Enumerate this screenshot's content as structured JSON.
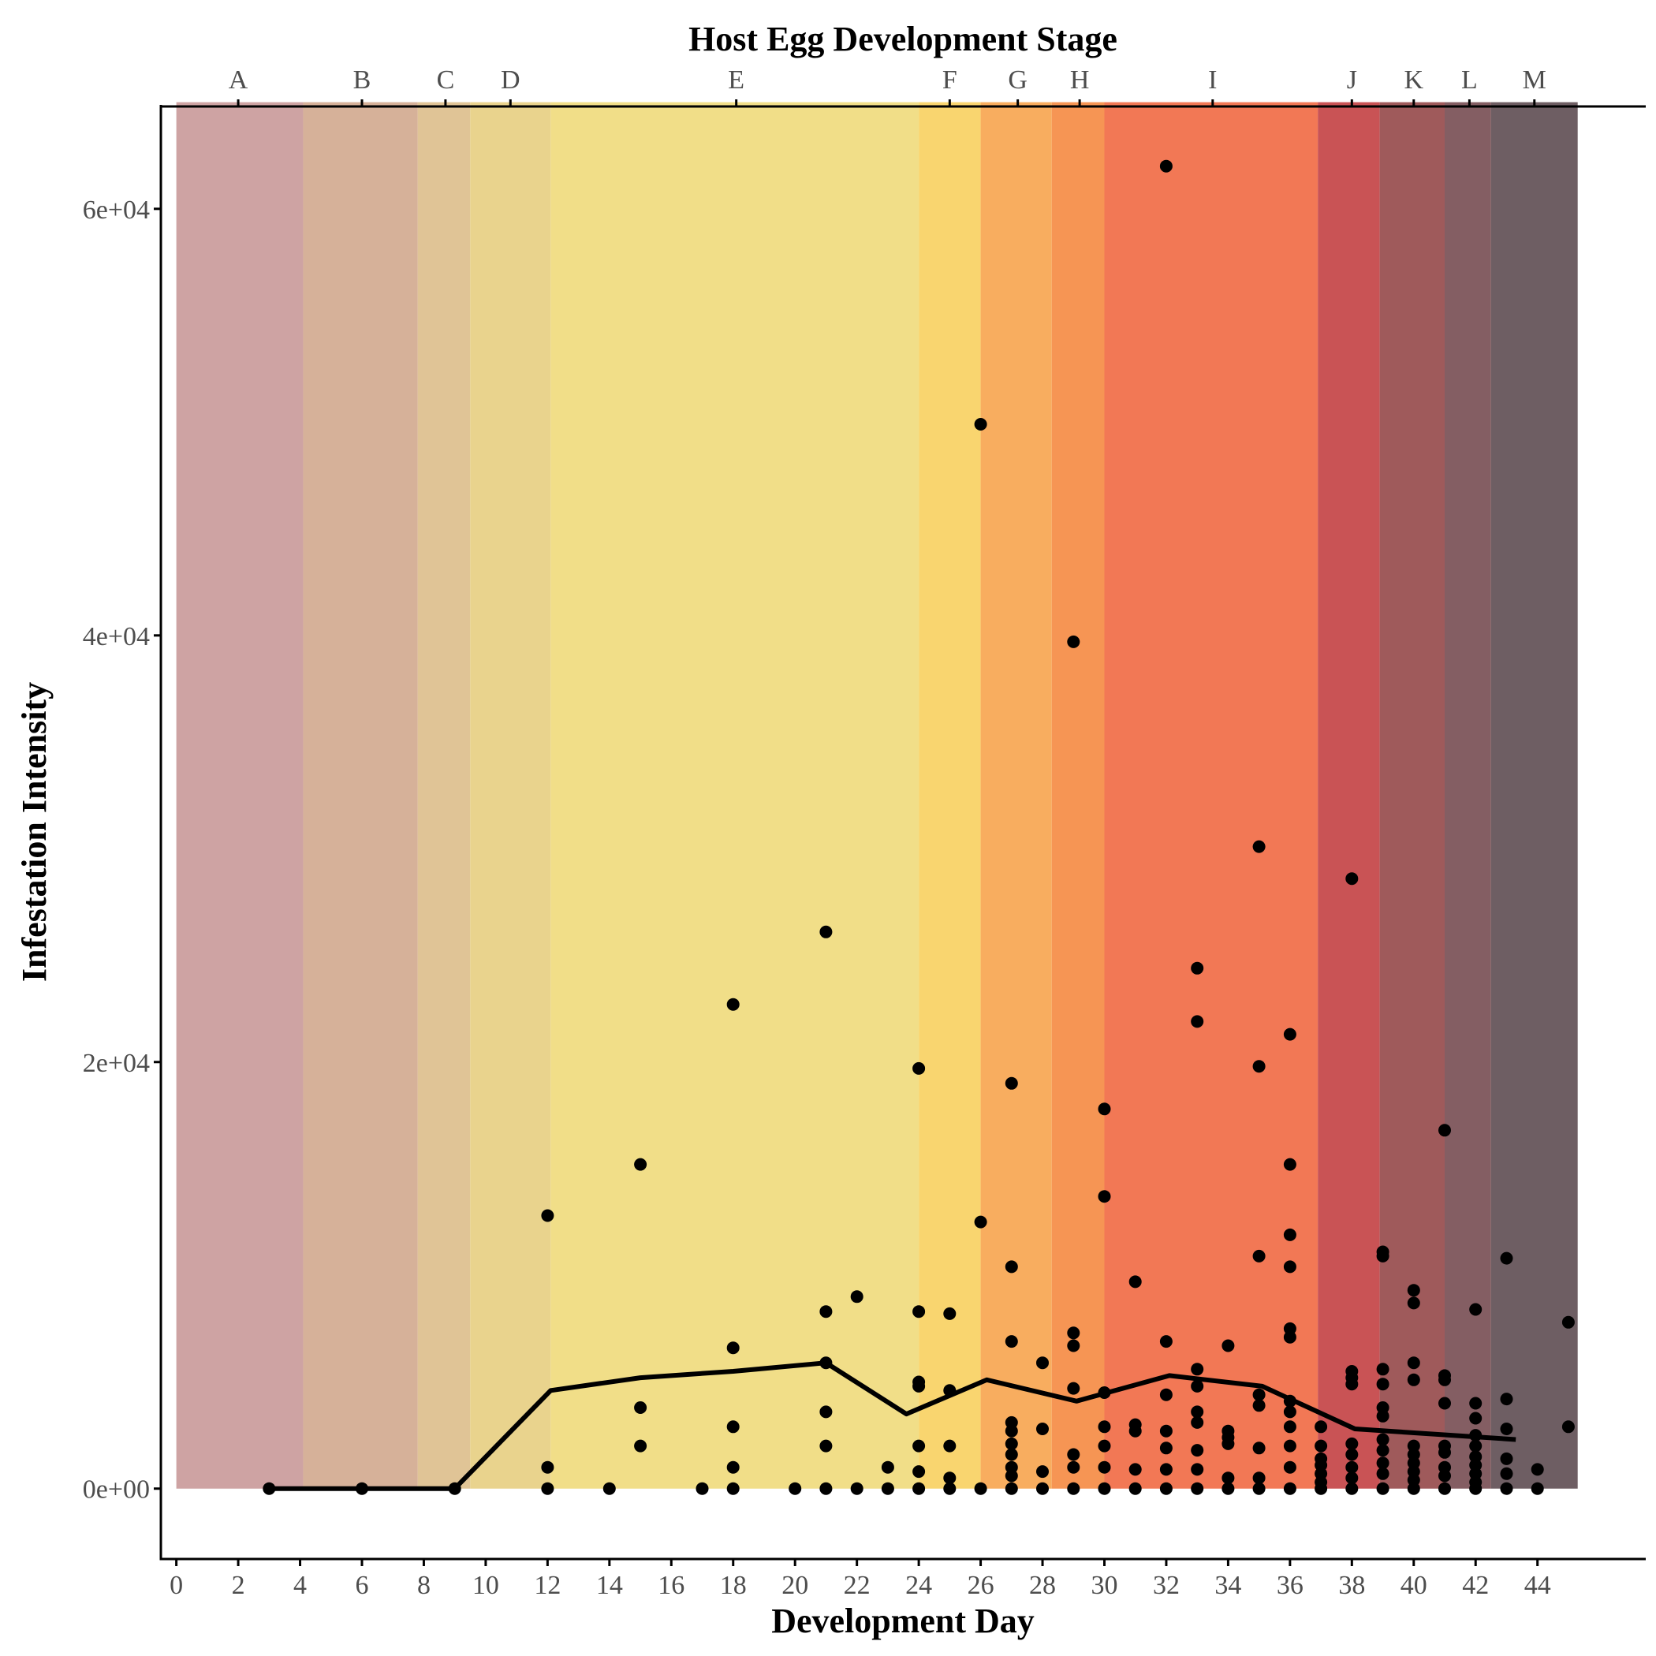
{
  "chart_data": {
    "type": "scatter",
    "title": "",
    "xlabel": "Development Day",
    "ylabel": "Infestation Intensity",
    "top_axis_title": "Host Egg Development Stage",
    "xlim": [
      -0.5,
      47.5
    ],
    "ylim": [
      -3300,
      64800
    ],
    "grid": false,
    "x_ticks": [
      0,
      2,
      4,
      6,
      8,
      10,
      12,
      14,
      16,
      18,
      20,
      22,
      24,
      26,
      28,
      30,
      32,
      34,
      36,
      38,
      40,
      42,
      44
    ],
    "y_ticks": [
      {
        "value": 0,
        "label": "0e+00"
      },
      {
        "value": 20000,
        "label": "2e+04"
      },
      {
        "value": 40000,
        "label": "4e+04"
      },
      {
        "value": 60000,
        "label": "6e+04"
      }
    ],
    "stage_ticks": [
      {
        "label": "A",
        "x": 2
      },
      {
        "label": "B",
        "x": 6
      },
      {
        "label": "C",
        "x": 8.7
      },
      {
        "label": "D",
        "x": 10.8
      },
      {
        "label": "E",
        "x": 18.1
      },
      {
        "label": "F",
        "x": 25
      },
      {
        "label": "G",
        "x": 27.2
      },
      {
        "label": "H",
        "x": 29.2
      },
      {
        "label": "I",
        "x": 33.5
      },
      {
        "label": "J",
        "x": 38
      },
      {
        "label": "K",
        "x": 40
      },
      {
        "label": "L",
        "x": 41.8
      },
      {
        "label": "M",
        "x": 43.9
      }
    ],
    "stage_bands": [
      {
        "stage": "A",
        "x0": 0,
        "x1": 4.1,
        "color": "#cea3a3"
      },
      {
        "stage": "B",
        "x0": 4.1,
        "x1": 7.8,
        "color": "#d6b199"
      },
      {
        "stage": "C",
        "x0": 7.8,
        "x1": 9.5,
        "color": "#e0c496"
      },
      {
        "stage": "D",
        "x0": 9.5,
        "x1": 12.1,
        "color": "#e9d38d"
      },
      {
        "stage": "E",
        "x0": 12.1,
        "x1": 24,
        "color": "#f1de88"
      },
      {
        "stage": "F",
        "x0": 24,
        "x1": 26,
        "color": "#f9d56f"
      },
      {
        "stage": "G",
        "x0": 26,
        "x1": 28.3,
        "color": "#f8ad5f"
      },
      {
        "stage": "H",
        "x0": 28.3,
        "x1": 30,
        "color": "#f69554"
      },
      {
        "stage": "I",
        "x0": 30,
        "x1": 36.9,
        "color": "#f27855"
      },
      {
        "stage": "J",
        "x0": 36.9,
        "x1": 38.9,
        "color": "#c95355"
      },
      {
        "stage": "K",
        "x0": 38.9,
        "x1": 41,
        "color": "#9f5a5b"
      },
      {
        "stage": "L",
        "x0": 41,
        "x1": 42.5,
        "color": "#845e63"
      },
      {
        "stage": "M",
        "x0": 42.5,
        "x1": 45.3,
        "color": "#6e5e63"
      }
    ],
    "band_top": 65000,
    "series": [
      {
        "type": "scatter",
        "color": "#000000",
        "points": [
          [
            3,
            0
          ],
          [
            6,
            0
          ],
          [
            9,
            0
          ],
          [
            12,
            0
          ],
          [
            12,
            1000
          ],
          [
            12,
            12800
          ],
          [
            14,
            0
          ],
          [
            15,
            2000
          ],
          [
            15,
            3800
          ],
          [
            15,
            15200
          ],
          [
            17,
            0
          ],
          [
            18,
            0
          ],
          [
            18,
            1000
          ],
          [
            18,
            2900
          ],
          [
            18,
            6600
          ],
          [
            18,
            22700
          ],
          [
            20,
            0
          ],
          [
            21,
            0
          ],
          [
            21,
            2000
          ],
          [
            21,
            3600
          ],
          [
            21,
            5900
          ],
          [
            21,
            8300
          ],
          [
            21,
            26100
          ],
          [
            22,
            0
          ],
          [
            22,
            9000
          ],
          [
            23,
            0
          ],
          [
            23,
            1000
          ],
          [
            24,
            0
          ],
          [
            24,
            800
          ],
          [
            24,
            2000
          ],
          [
            24,
            4800
          ],
          [
            24,
            5000
          ],
          [
            24,
            8300
          ],
          [
            24,
            19700
          ],
          [
            25,
            0
          ],
          [
            25,
            500
          ],
          [
            25,
            2000
          ],
          [
            25,
            4600
          ],
          [
            25,
            8200
          ],
          [
            26,
            0
          ],
          [
            26,
            12500
          ],
          [
            26,
            49900
          ],
          [
            27,
            0
          ],
          [
            27,
            600
          ],
          [
            27,
            1000
          ],
          [
            27,
            1600
          ],
          [
            27,
            2100
          ],
          [
            27,
            2700
          ],
          [
            27,
            3100
          ],
          [
            27,
            6900
          ],
          [
            27,
            10400
          ],
          [
            27,
            19000
          ],
          [
            28,
            0
          ],
          [
            28,
            800
          ],
          [
            28,
            2800
          ],
          [
            28,
            5900
          ],
          [
            29,
            0
          ],
          [
            29,
            1000
          ],
          [
            29,
            1600
          ],
          [
            29,
            4700
          ],
          [
            29,
            6700
          ],
          [
            29,
            7300
          ],
          [
            29,
            39700
          ],
          [
            30,
            0
          ],
          [
            30,
            1000
          ],
          [
            30,
            2000
          ],
          [
            30,
            2900
          ],
          [
            30,
            4500
          ],
          [
            30,
            13700
          ],
          [
            30,
            17800
          ],
          [
            31,
            0
          ],
          [
            31,
            900
          ],
          [
            31,
            2700
          ],
          [
            31,
            3000
          ],
          [
            31,
            9700
          ],
          [
            32,
            0
          ],
          [
            32,
            900
          ],
          [
            32,
            1900
          ],
          [
            32,
            2700
          ],
          [
            32,
            4400
          ],
          [
            32,
            6900
          ],
          [
            32,
            62000
          ],
          [
            33,
            0
          ],
          [
            33,
            900
          ],
          [
            33,
            1800
          ],
          [
            33,
            3100
          ],
          [
            33,
            3600
          ],
          [
            33,
            4800
          ],
          [
            33,
            5600
          ],
          [
            33,
            21900
          ],
          [
            33,
            24400
          ],
          [
            34,
            0
          ],
          [
            34,
            500
          ],
          [
            34,
            2100
          ],
          [
            34,
            2400
          ],
          [
            34,
            2700
          ],
          [
            34,
            6700
          ],
          [
            35,
            0
          ],
          [
            35,
            500
          ],
          [
            35,
            1900
          ],
          [
            35,
            3900
          ],
          [
            35,
            4400
          ],
          [
            35,
            10900
          ],
          [
            35,
            19800
          ],
          [
            35,
            30100
          ],
          [
            36,
            0
          ],
          [
            36,
            1000
          ],
          [
            36,
            2000
          ],
          [
            36,
            2900
          ],
          [
            36,
            3600
          ],
          [
            36,
            4100
          ],
          [
            36,
            7100
          ],
          [
            36,
            7500
          ],
          [
            36,
            10400
          ],
          [
            36,
            11900
          ],
          [
            36,
            15200
          ],
          [
            36,
            21300
          ],
          [
            37,
            0
          ],
          [
            37,
            300
          ],
          [
            37,
            700
          ],
          [
            37,
            1100
          ],
          [
            37,
            1400
          ],
          [
            37,
            2000
          ],
          [
            37,
            2900
          ],
          [
            38,
            0
          ],
          [
            38,
            500
          ],
          [
            38,
            1000
          ],
          [
            38,
            1600
          ],
          [
            38,
            2100
          ],
          [
            38,
            4900
          ],
          [
            38,
            5200
          ],
          [
            38,
            5500
          ],
          [
            38,
            28600
          ],
          [
            39,
            0
          ],
          [
            39,
            700
          ],
          [
            39,
            1200
          ],
          [
            39,
            1800
          ],
          [
            39,
            2300
          ],
          [
            39,
            3400
          ],
          [
            39,
            3800
          ],
          [
            39,
            4900
          ],
          [
            39,
            5600
          ],
          [
            39,
            10900
          ],
          [
            39,
            11100
          ],
          [
            40,
            0
          ],
          [
            40,
            400
          ],
          [
            40,
            800
          ],
          [
            40,
            1200
          ],
          [
            40,
            1600
          ],
          [
            40,
            2000
          ],
          [
            40,
            5100
          ],
          [
            40,
            5900
          ],
          [
            40,
            8700
          ],
          [
            40,
            9300
          ],
          [
            41,
            0
          ],
          [
            41,
            600
          ],
          [
            41,
            1000
          ],
          [
            41,
            1700
          ],
          [
            41,
            2000
          ],
          [
            41,
            4000
          ],
          [
            41,
            5100
          ],
          [
            41,
            5300
          ],
          [
            41,
            16800
          ],
          [
            42,
            0
          ],
          [
            42,
            300
          ],
          [
            42,
            700
          ],
          [
            42,
            1100
          ],
          [
            42,
            1500
          ],
          [
            42,
            2000
          ],
          [
            42,
            2500
          ],
          [
            42,
            3300
          ],
          [
            42,
            4000
          ],
          [
            42,
            8400
          ],
          [
            43,
            0
          ],
          [
            43,
            700
          ],
          [
            43,
            1400
          ],
          [
            43,
            2800
          ],
          [
            43,
            4200
          ],
          [
            43,
            10800
          ],
          [
            44,
            0
          ],
          [
            44,
            900
          ],
          [
            45,
            2900
          ],
          [
            45,
            7800
          ]
        ]
      },
      {
        "type": "line",
        "color": "#000000",
        "points": [
          [
            3,
            0
          ],
          [
            9,
            0
          ],
          [
            12.1,
            4600
          ],
          [
            15,
            5200
          ],
          [
            18,
            5500
          ],
          [
            21,
            5900
          ],
          [
            23.6,
            3500
          ],
          [
            26.2,
            5100
          ],
          [
            29.1,
            4100
          ],
          [
            32.1,
            5300
          ],
          [
            35.1,
            4800
          ],
          [
            38.1,
            2800
          ],
          [
            43.3,
            2300
          ]
        ]
      }
    ]
  }
}
